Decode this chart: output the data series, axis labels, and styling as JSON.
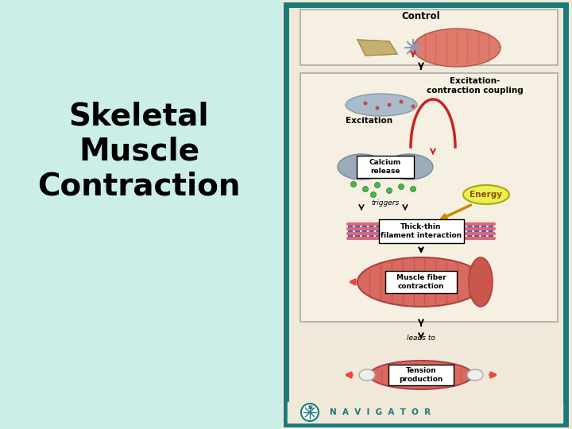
{
  "bg_color_left": "#cceee8",
  "bg_color_right": "#f0e8d8",
  "border_color": "#1a7a7a",
  "title_text": "Skeletal\nMuscle\nContraction",
  "title_color": "#000000",
  "title_fontsize": 28,
  "navigator_text": "N  A  V  I  G  A  T  O  R",
  "navigator_color": "#1a7a7a",
  "labels": {
    "control": "Control",
    "excitation_coupling": "Excitation-\ncontraction coupling",
    "excitation": "Excitation",
    "calcium_release": "Calcium\nrelease",
    "triggers": "triggers",
    "energy": "Energy",
    "thick_thin": "Thick-thin\nfilament interaction",
    "muscle_fiber": "Muscle fiber\ncontraction",
    "leads_to": "leads to",
    "tension": "Tension\nproduction"
  }
}
